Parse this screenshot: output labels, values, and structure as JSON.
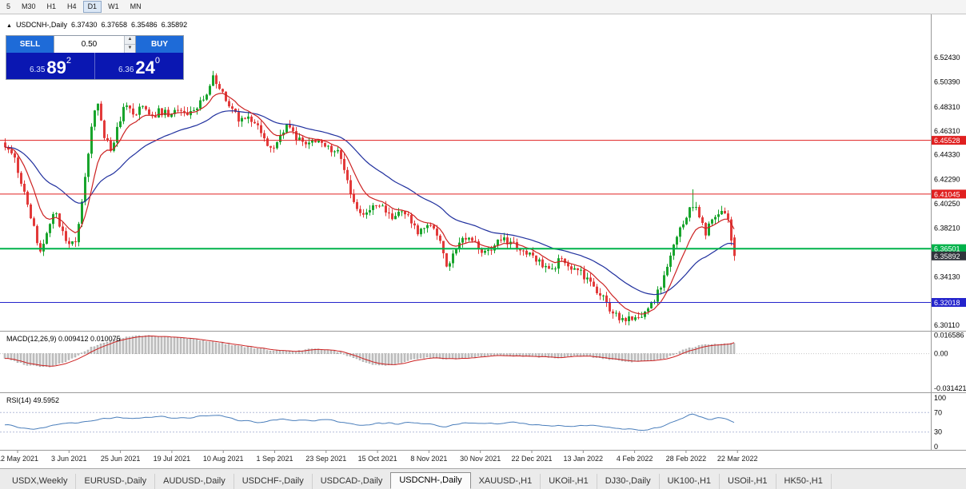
{
  "toolbar": {
    "timeframes": [
      "5",
      "M30",
      "H1",
      "H4",
      "D1",
      "W1",
      "MN"
    ],
    "active": "D1"
  },
  "chart_header": {
    "symbol": "USDCNH-,Daily",
    "open": "6.37430",
    "high": "6.37658",
    "low": "6.35486",
    "close": "6.35892"
  },
  "trade_panel": {
    "sell_label": "SELL",
    "buy_label": "BUY",
    "volume": "0.50",
    "sell_price": {
      "prefix": "6.35",
      "big": "89",
      "sup": "2"
    },
    "buy_price": {
      "prefix": "6.36",
      "big": "24",
      "sup": "0"
    }
  },
  "tabs": {
    "active": "USDCNH-,Daily",
    "items": [
      "USDX,Weekly",
      "EURUSD-,Daily",
      "AUDUSD-,Daily",
      "USDCHF-,Daily",
      "USDCAD-,Daily",
      "USDCNH-,Daily",
      "XAUUSD-,H1",
      "UKOil-,H1",
      "DJ30-,Daily",
      "UK100-,H1",
      "USOil-,H1",
      "HK50-,H1"
    ]
  },
  "chart_data": {
    "type": "candlestick",
    "symbol": "USDCNH-",
    "timeframe": "Daily",
    "price_range": {
      "min": 6.2965,
      "max": 6.5603
    },
    "num_candles": 229,
    "last_ohlc": {
      "open": 6.3743,
      "high": 6.37658,
      "low": 6.35486,
      "close": 6.35892
    },
    "spike": {
      "t": 0.941,
      "high": 6.4145
    },
    "close_anchors": [
      [
        0,
        6.452
      ],
      [
        0.012,
        6.442
      ],
      [
        0.025,
        6.415
      ],
      [
        0.038,
        6.385
      ],
      [
        0.048,
        6.36
      ],
      [
        0.058,
        6.382
      ],
      [
        0.068,
        6.398
      ],
      [
        0.078,
        6.378
      ],
      [
        0.088,
        6.368
      ],
      [
        0.098,
        6.374
      ],
      [
        0.108,
        6.415
      ],
      [
        0.118,
        6.468
      ],
      [
        0.126,
        6.488
      ],
      [
        0.136,
        6.46
      ],
      [
        0.145,
        6.444
      ],
      [
        0.155,
        6.468
      ],
      [
        0.165,
        6.487
      ],
      [
        0.178,
        6.476
      ],
      [
        0.19,
        6.487
      ],
      [
        0.2,
        6.473
      ],
      [
        0.212,
        6.48
      ],
      [
        0.225,
        6.476
      ],
      [
        0.238,
        6.482
      ],
      [
        0.25,
        6.478
      ],
      [
        0.262,
        6.483
      ],
      [
        0.274,
        6.492
      ],
      [
        0.285,
        6.507
      ],
      [
        0.296,
        6.498
      ],
      [
        0.308,
        6.484
      ],
      [
        0.32,
        6.473
      ],
      [
        0.333,
        6.477
      ],
      [
        0.345,
        6.468
      ],
      [
        0.356,
        6.455
      ],
      [
        0.366,
        6.446
      ],
      [
        0.377,
        6.459
      ],
      [
        0.388,
        6.468
      ],
      [
        0.398,
        6.459
      ],
      [
        0.41,
        6.451
      ],
      [
        0.422,
        6.456
      ],
      [
        0.434,
        6.451
      ],
      [
        0.446,
        6.449
      ],
      [
        0.457,
        6.444
      ],
      [
        0.466,
        6.428
      ],
      [
        0.474,
        6.407
      ],
      [
        0.483,
        6.395
      ],
      [
        0.492,
        6.39
      ],
      [
        0.502,
        6.399
      ],
      [
        0.512,
        6.402
      ],
      [
        0.523,
        6.394
      ],
      [
        0.534,
        6.39
      ],
      [
        0.545,
        6.397
      ],
      [
        0.556,
        6.388
      ],
      [
        0.567,
        6.377
      ],
      [
        0.578,
        6.387
      ],
      [
        0.589,
        6.379
      ],
      [
        0.598,
        6.368
      ],
      [
        0.606,
        6.349
      ],
      [
        0.614,
        6.361
      ],
      [
        0.624,
        6.374
      ],
      [
        0.636,
        6.375
      ],
      [
        0.648,
        6.366
      ],
      [
        0.659,
        6.362
      ],
      [
        0.67,
        6.368
      ],
      [
        0.681,
        6.375
      ],
      [
        0.692,
        6.37
      ],
      [
        0.704,
        6.367
      ],
      [
        0.716,
        6.362
      ],
      [
        0.728,
        6.357
      ],
      [
        0.739,
        6.349
      ],
      [
        0.75,
        6.347
      ],
      [
        0.761,
        6.356
      ],
      [
        0.772,
        6.352
      ],
      [
        0.783,
        6.348
      ],
      [
        0.794,
        6.342
      ],
      [
        0.805,
        6.334
      ],
      [
        0.816,
        6.327
      ],
      [
        0.827,
        6.317
      ],
      [
        0.838,
        6.309
      ],
      [
        0.848,
        6.305
      ],
      [
        0.858,
        6.309
      ],
      [
        0.868,
        6.305
      ],
      [
        0.878,
        6.31
      ],
      [
        0.888,
        6.32
      ],
      [
        0.898,
        6.332
      ],
      [
        0.908,
        6.349
      ],
      [
        0.918,
        6.37
      ],
      [
        0.928,
        6.386
      ],
      [
        0.938,
        6.398
      ],
      [
        0.945,
        6.404
      ],
      [
        0.952,
        6.39
      ],
      [
        0.96,
        6.378
      ],
      [
        0.968,
        6.387
      ],
      [
        0.976,
        6.394
      ],
      [
        0.984,
        6.396
      ],
      [
        0.992,
        6.387
      ],
      [
        1,
        6.359
      ]
    ],
    "levels": [
      {
        "price": 6.45528,
        "label": "6.45528",
        "color": "level_red",
        "width": 1
      },
      {
        "price": 6.41045,
        "label": "6.41045",
        "color": "level_red",
        "width": 1
      },
      {
        "price": 6.36501,
        "label": "6.36501",
        "color": "level_green",
        "width": 2
      },
      {
        "price": 6.32018,
        "label": "6.32018",
        "color": "level_blue",
        "width": 1
      }
    ],
    "current_price": {
      "value": 6.35892,
      "label": "6.35892",
      "bg": "#30343c"
    },
    "y_ticks": [
      "6.52430",
      "6.50390",
      "6.48310",
      "6.46310",
      "6.44330",
      "6.42290",
      "6.40250",
      "6.38210",
      "6.34130",
      "6.30110"
    ],
    "x_labels": [
      "12 May 2021",
      "3 Jun 2021",
      "25 Jun 2021",
      "19 Jul 2021",
      "10 Aug 2021",
      "1 Sep 2021",
      "23 Sep 2021",
      "15 Oct 2021",
      "8 Nov 2021",
      "30 Nov 2021",
      "22 Dec 2021",
      "13 Jan 2022",
      "4 Feb 2022",
      "28 Feb 2022",
      "22 Mar 2022"
    ],
    "moving_averages": [
      {
        "name": "ma-fast",
        "period": 10,
        "color": "#cc2222"
      },
      {
        "name": "ma-slow",
        "period": 34,
        "color": "#20309e"
      }
    ],
    "colors": {
      "up": "#18a42c",
      "down": "#e23a3a",
      "histogram": "#c8c8c8",
      "histogram_border": "#909090",
      "macd_signal": "#cc2222",
      "rsi_line": "#4a7ebb",
      "rsi_level": "#b4bcd8",
      "level_red": "#e02020",
      "level_green": "#00b24a",
      "level_blue": "#2424cc"
    },
    "macd": {
      "label": "MACD(12,26,9) 0.009412 0.010075",
      "main": 0.009412,
      "signal": 0.010075,
      "range": {
        "min": -0.0335,
        "max": 0.0185
      },
      "axis_ticks": [
        {
          "v": 0.016586,
          "label": "0.016586"
        },
        {
          "v": 0,
          "label": "0.00"
        },
        {
          "v": -0.031421,
          "label": "-0.031421"
        }
      ],
      "anchors": [
        [
          0,
          -0.004
        ],
        [
          0.03,
          -0.01
        ],
        [
          0.06,
          -0.012
        ],
        [
          0.08,
          -0.008
        ],
        [
          0.1,
          -0.002
        ],
        [
          0.12,
          0.006
        ],
        [
          0.15,
          0.013
        ],
        [
          0.18,
          0.016
        ],
        [
          0.2,
          0.0162
        ],
        [
          0.22,
          0.015
        ],
        [
          0.25,
          0.0135
        ],
        [
          0.28,
          0.011
        ],
        [
          0.31,
          0.008
        ],
        [
          0.34,
          0.005
        ],
        [
          0.37,
          0.0025
        ],
        [
          0.4,
          0.002
        ],
        [
          0.42,
          0.004
        ],
        [
          0.44,
          0.0035
        ],
        [
          0.46,
          0.001
        ],
        [
          0.48,
          -0.004
        ],
        [
          0.5,
          -0.009
        ],
        [
          0.52,
          -0.011
        ],
        [
          0.54,
          -0.009
        ],
        [
          0.56,
          -0.005
        ],
        [
          0.58,
          -0.0035
        ],
        [
          0.61,
          -0.005
        ],
        [
          0.63,
          -0.004
        ],
        [
          0.65,
          -0.0025
        ],
        [
          0.68,
          -0.0015
        ],
        [
          0.7,
          -0.002
        ],
        [
          0.72,
          -0.0025
        ],
        [
          0.74,
          -0.003
        ],
        [
          0.76,
          -0.0035
        ],
        [
          0.78,
          -0.002
        ],
        [
          0.8,
          -0.0025
        ],
        [
          0.83,
          -0.005
        ],
        [
          0.86,
          -0.0075
        ],
        [
          0.89,
          -0.006
        ],
        [
          0.91,
          -0.003
        ],
        [
          0.93,
          0.003
        ],
        [
          0.95,
          0.007
        ],
        [
          0.97,
          0.0085
        ],
        [
          1,
          0.0095
        ]
      ]
    },
    "rsi": {
      "label": "RSI(14) 49.5952",
      "value": 49.5952,
      "range": {
        "min": 0,
        "max": 100
      },
      "axis_ticks": [
        {
          "v": 100,
          "label": "100"
        },
        {
          "v": 70,
          "label": "70"
        },
        {
          "v": 30,
          "label": "30"
        },
        {
          "v": 0,
          "label": "0"
        }
      ],
      "levels": [
        70,
        30
      ],
      "anchors": [
        [
          0,
          45
        ],
        [
          0.02,
          40
        ],
        [
          0.04,
          36
        ],
        [
          0.06,
          42
        ],
        [
          0.08,
          50
        ],
        [
          0.1,
          48
        ],
        [
          0.12,
          55
        ],
        [
          0.15,
          60
        ],
        [
          0.18,
          57
        ],
        [
          0.21,
          62
        ],
        [
          0.24,
          58
        ],
        [
          0.27,
          63
        ],
        [
          0.29,
          66
        ],
        [
          0.32,
          54
        ],
        [
          0.35,
          50
        ],
        [
          0.38,
          56
        ],
        [
          0.41,
          53
        ],
        [
          0.44,
          55
        ],
        [
          0.46,
          52
        ],
        [
          0.48,
          44
        ],
        [
          0.5,
          47
        ],
        [
          0.52,
          49
        ],
        [
          0.54,
          46
        ],
        [
          0.56,
          50
        ],
        [
          0.58,
          46
        ],
        [
          0.6,
          40
        ],
        [
          0.62,
          46
        ],
        [
          0.64,
          50
        ],
        [
          0.66,
          48
        ],
        [
          0.68,
          47
        ],
        [
          0.7,
          49
        ],
        [
          0.72,
          46
        ],
        [
          0.74,
          44
        ],
        [
          0.76,
          42
        ],
        [
          0.78,
          40
        ],
        [
          0.8,
          45
        ],
        [
          0.82,
          42
        ],
        [
          0.84,
          38
        ],
        [
          0.86,
          36
        ],
        [
          0.88,
          35
        ],
        [
          0.9,
          42
        ],
        [
          0.92,
          52
        ],
        [
          0.935,
          62
        ],
        [
          0.945,
          68
        ],
        [
          0.955,
          60
        ],
        [
          0.965,
          55
        ],
        [
          0.975,
          58
        ],
        [
          0.985,
          60
        ],
        [
          1,
          49.6
        ]
      ]
    }
  }
}
